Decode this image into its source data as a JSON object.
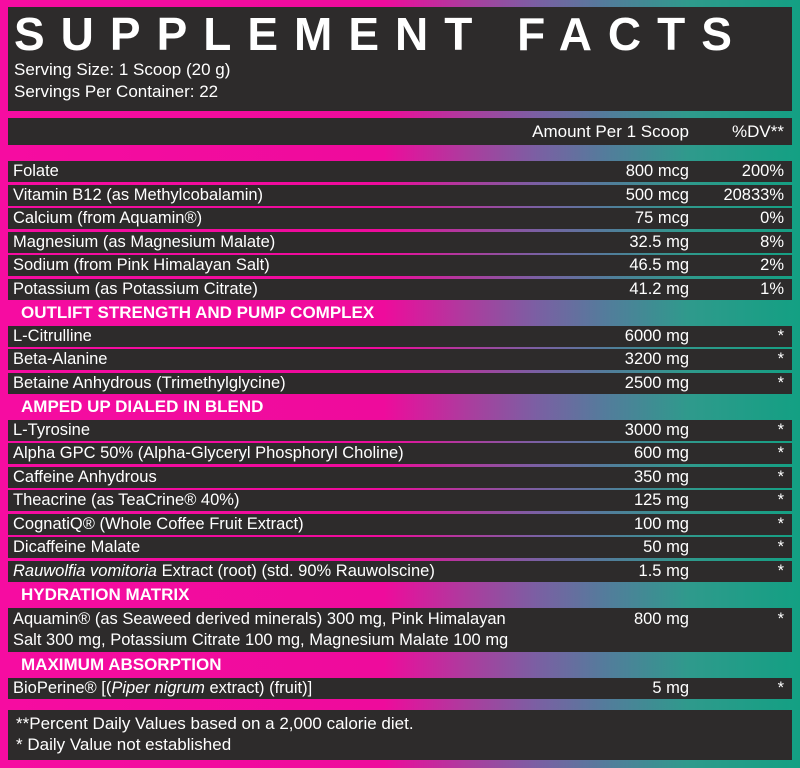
{
  "header": {
    "title": "SUPPLEMENT FACTS",
    "serving_size": "Serving Size: 1 Scoop (20 g)",
    "servings_per_container": "Servings Per Container: 22"
  },
  "columns": {
    "amount_header": "Amount Per 1 Scoop",
    "dv_header": "%DV**"
  },
  "colors": {
    "magenta": "#ee0b9c",
    "purple": "#7b5fa3",
    "slate_blue": "#527d9b",
    "teal": "#13a083",
    "panel_dark": "#2d2b2b",
    "text": "#ffffff"
  },
  "table": {
    "micros": [
      {
        "name": "Folate",
        "amount": "800 mcg",
        "dv": "200%"
      },
      {
        "name": "Vitamin B12 (as Methylcobalamin)",
        "amount": "500 mcg",
        "dv": "20833%"
      },
      {
        "name": "Calcium (from Aquamin®)",
        "amount": "75 mcg",
        "dv": "0%"
      },
      {
        "name": "Magnesium (as Magnesium Malate)",
        "amount": "32.5 mg",
        "dv": "8%"
      },
      {
        "name": "Sodium (from Pink Himalayan Salt)",
        "amount": "46.5 mg",
        "dv": "2%"
      },
      {
        "name": "Potassium (as Potassium Citrate)",
        "amount": "41.2 mg",
        "dv": "1%"
      }
    ],
    "sections": [
      {
        "title": "OUTLIFT STRENGTH AND PUMP COMPLEX",
        "rows": [
          {
            "name": "L-Citrulline",
            "amount": "6000 mg",
            "dv": "*"
          },
          {
            "name": "Beta-Alanine",
            "amount": "3200 mg",
            "dv": "*"
          },
          {
            "name": "Betaine Anhydrous (Trimethylglycine)",
            "amount": "2500 mg",
            "dv": "*"
          }
        ]
      },
      {
        "title": "AMPED UP DIALED IN BLEND",
        "rows": [
          {
            "name": "L-Tyrosine",
            "amount": "3000 mg",
            "dv": "*"
          },
          {
            "name": "Alpha GPC 50% (Alpha-Glyceryl Phosphoryl Choline)",
            "amount": "600 mg",
            "dv": "*"
          },
          {
            "name": "Caffeine Anhydrous",
            "amount": "350 mg",
            "dv": "*"
          },
          {
            "name": "Theacrine (as TeaCrine® 40%)",
            "amount": "125 mg",
            "dv": "*"
          },
          {
            "name": "CognatiQ® (Whole Coffee Fruit Extract)",
            "amount": "100 mg",
            "dv": "*"
          },
          {
            "name": "Dicaffeine Malate",
            "amount": "50 mg",
            "dv": "*"
          },
          {
            "name_italic": "Rauwolfia vomitoria",
            "name_rest": " Extract (root) (std. 90% Rauwolscine)",
            "amount": "1.5 mg",
            "dv": "*"
          }
        ]
      },
      {
        "title": "HYDRATION MATRIX",
        "rows": [
          {
            "name": "Aquamin® (as Seaweed derived minerals) 300 mg, Pink Himalayan Salt 300 mg, Potassium Citrate 100 mg, Magnesium Malate 100 mg",
            "amount": "800 mg",
            "dv": "*"
          }
        ]
      },
      {
        "title": "MAXIMUM ABSORPTION",
        "rows": [
          {
            "name_prefix": "BioPerine® [(",
            "name_italic": "Piper nigrum",
            "name_rest": " extract) (fruit)]",
            "amount": "5 mg",
            "dv": "*"
          }
        ]
      }
    ]
  },
  "footnotes": {
    "dv_note": "**Percent Daily Values based on a 2,000 calorie diet.",
    "not_established_note": "* Daily Value not established"
  }
}
